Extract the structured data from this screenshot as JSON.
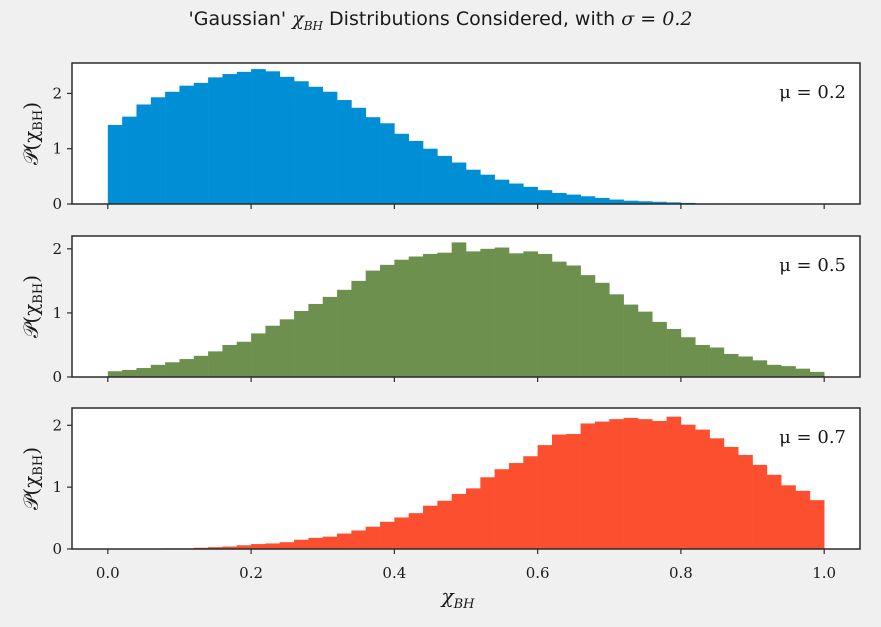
{
  "chart_data": {
    "type": "bar",
    "title_prefix": "'Gaussian' ",
    "title_math_symbol": "χ",
    "title_math_sub": "BH",
    "title_suffix": " Distributions Considered, with ",
    "title_sigma": "σ = 0.2",
    "xlabel": "χ",
    "xlabel_sub": "BH",
    "ylabel": "𝒫(χ",
    "ylabel_sub": "BH",
    "ylabel_close": ")",
    "xlim": [
      -0.05,
      1.05
    ],
    "xticks": [
      0.0,
      0.2,
      0.4,
      0.6,
      0.8,
      1.0
    ],
    "xtick_labels": [
      "0.0",
      "0.2",
      "0.4",
      "0.6",
      "0.8",
      "1.0"
    ],
    "bin_width": 0.02,
    "bin_start": 0.0,
    "panels": [
      {
        "annotation": "μ = 0.2",
        "color": "#008fd5",
        "ylim": [
          0,
          2.55
        ],
        "yticks": [
          0,
          1,
          2
        ],
        "ytick_labels": [
          "0",
          "1",
          "2"
        ],
        "values": [
          1.43,
          1.58,
          1.8,
          1.93,
          2.03,
          2.14,
          2.19,
          2.29,
          2.35,
          2.39,
          2.44,
          2.4,
          2.3,
          2.22,
          2.12,
          2.03,
          1.88,
          1.74,
          1.57,
          1.46,
          1.27,
          1.14,
          1.0,
          0.87,
          0.75,
          0.62,
          0.53,
          0.44,
          0.37,
          0.31,
          0.25,
          0.2,
          0.17,
          0.14,
          0.11,
          0.08,
          0.06,
          0.05,
          0.04,
          0.03,
          0.02,
          0.01,
          0.01,
          0.005,
          0.003,
          0.002,
          0.001,
          0.001,
          0.0,
          0.0
        ]
      },
      {
        "annotation": "μ = 0.5",
        "color": "#6d904f",
        "ylim": [
          0,
          2.2
        ],
        "yticks": [
          0,
          1,
          2
        ],
        "ytick_labels": [
          "0",
          "1",
          "2"
        ],
        "values": [
          0.09,
          0.11,
          0.14,
          0.19,
          0.23,
          0.28,
          0.33,
          0.4,
          0.5,
          0.55,
          0.68,
          0.8,
          0.9,
          1.03,
          1.14,
          1.25,
          1.36,
          1.5,
          1.66,
          1.75,
          1.83,
          1.88,
          1.92,
          1.94,
          2.1,
          1.96,
          2.0,
          2.02,
          1.93,
          1.96,
          1.92,
          1.8,
          1.74,
          1.59,
          1.47,
          1.29,
          1.13,
          1.02,
          0.86,
          0.75,
          0.62,
          0.5,
          0.46,
          0.36,
          0.32,
          0.26,
          0.19,
          0.17,
          0.13,
          0.08
        ]
      },
      {
        "annotation": "μ = 0.7",
        "color": "#fc4f30",
        "ylim": [
          0,
          2.28
        ],
        "yticks": [
          0,
          1,
          2
        ],
        "ytick_labels": [
          "0",
          "1",
          "2"
        ],
        "values": [
          0.0,
          0.0,
          0.0,
          0.005,
          0.01,
          0.01,
          0.02,
          0.03,
          0.04,
          0.06,
          0.08,
          0.09,
          0.11,
          0.15,
          0.18,
          0.2,
          0.25,
          0.3,
          0.36,
          0.44,
          0.51,
          0.58,
          0.7,
          0.78,
          0.89,
          0.98,
          1.16,
          1.29,
          1.39,
          1.5,
          1.68,
          1.85,
          1.86,
          2.03,
          2.06,
          2.1,
          2.12,
          2.1,
          2.07,
          2.14,
          2.01,
          1.93,
          1.79,
          1.65,
          1.52,
          1.36,
          1.2,
          1.03,
          0.94,
          0.79
        ]
      }
    ]
  }
}
